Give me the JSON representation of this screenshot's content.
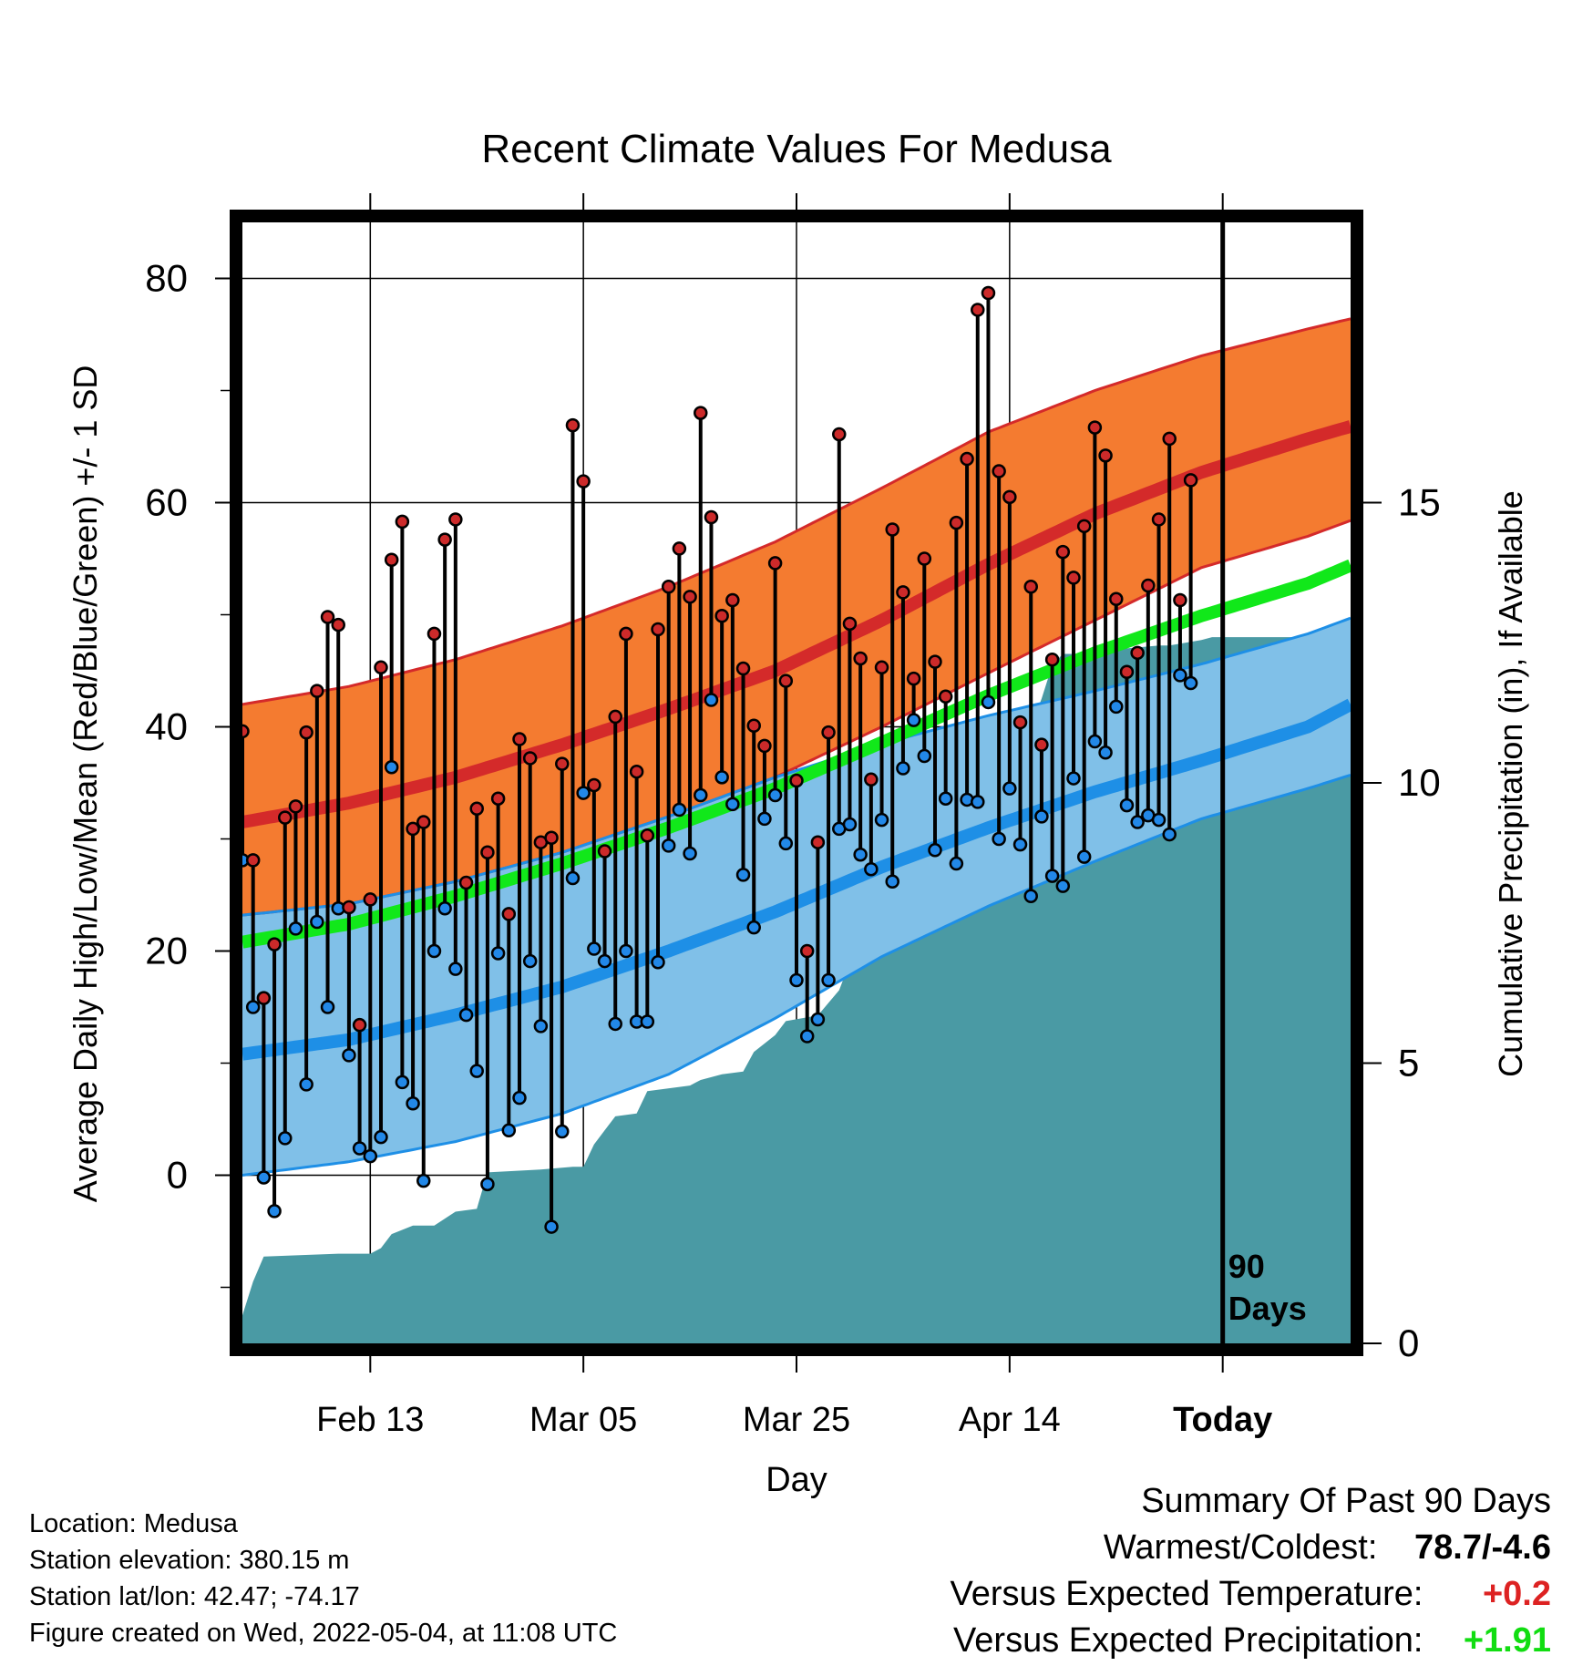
{
  "chart_data": {
    "type": "line",
    "title": "Recent Climate Values For Medusa",
    "xlabel": "Day",
    "ylabel": "Average Daily High/Low/Mean (Red/Blue/Green) +/- 1 SD",
    "y2label": "Cumulative Precipitation (in), If Available",
    "xlim": [
      1,
      105
    ],
    "ylim": [
      -15,
      85
    ],
    "y2lim": [
      0,
      20
    ],
    "yticks": [
      0,
      20,
      40,
      60,
      80
    ],
    "y2ticks": [
      0,
      5,
      10,
      15
    ],
    "xticks": [
      {
        "day": 13,
        "label": "Feb 13"
      },
      {
        "day": 33,
        "label": "Mar 05"
      },
      {
        "day": 53,
        "label": "Mar 25"
      },
      {
        "day": 73,
        "label": "Apr 14"
      },
      {
        "day": 93,
        "label": "Today"
      }
    ],
    "today_day": 93,
    "today_label_1": "90",
    "today_label_2": "Days",
    "grid": true,
    "colors": {
      "high_band": "#f47b30",
      "high_mean": "#d42a2a",
      "high_edge": "#d42a2a",
      "low_band": "#80c0e8",
      "low_mean": "#1e8fe6",
      "low_edge": "#1e8fe6",
      "mean": "#11e81a",
      "precip": "#4a9aa4",
      "high_dot": "#cc2a2a",
      "low_dot": "#2288e8"
    },
    "normals_days": [
      1,
      11,
      21,
      31,
      41,
      51,
      61,
      71,
      81,
      91,
      101,
      105
    ],
    "normal_high": [
      31.5,
      33.2,
      35.5,
      38.4,
      41.6,
      45.0,
      49.5,
      54.5,
      59.0,
      62.7,
      65.7,
      66.8
    ],
    "normal_high_upper": [
      42.0,
      43.6,
      46.0,
      49.0,
      52.5,
      56.5,
      61.3,
      66.3,
      70.0,
      73.1,
      75.5,
      76.4
    ],
    "normal_high_lower": [
      23.2,
      24.2,
      26.2,
      28.8,
      32.0,
      35.5,
      40.0,
      44.8,
      49.5,
      54.2,
      57.0,
      58.4
    ],
    "normal_low": [
      10.8,
      12.1,
      14.3,
      16.8,
      20.0,
      23.5,
      27.5,
      31.0,
      34.2,
      37.0,
      40.0,
      42.0
    ],
    "normal_low_upper": [
      23.2,
      24.2,
      26.2,
      28.8,
      32.0,
      35.5,
      38.5,
      41.0,
      43.2,
      45.6,
      48.3,
      49.7
    ],
    "normal_low_lower": [
      0.0,
      1.2,
      3.0,
      5.5,
      9.0,
      14.0,
      19.5,
      24.0,
      28.0,
      31.8,
      34.5,
      35.7
    ],
    "normal_mean": [
      20.8,
      22.4,
      24.9,
      27.8,
      31.0,
      34.5,
      38.6,
      42.8,
      46.6,
      49.9,
      52.8,
      54.4
    ],
    "daily_high": [
      39.6,
      28.1,
      15.8,
      20.6,
      31.9,
      32.9,
      39.5,
      43.2,
      49.8,
      49.1,
      23.9,
      13.4,
      24.6,
      45.3,
      54.9,
      58.3,
      30.9,
      31.5,
      48.3,
      56.7,
      58.5,
      26.1,
      32.7,
      28.8,
      33.6,
      23.3,
      38.9,
      37.2,
      29.7,
      30.1,
      36.7,
      66.9,
      61.9,
      34.8,
      28.9,
      40.9,
      48.3,
      36.0,
      30.3,
      48.7,
      52.5,
      55.9,
      51.6,
      68.0,
      58.7,
      49.9,
      51.3,
      45.2,
      40.1,
      38.3,
      54.6,
      44.1,
      35.2,
      20.0,
      29.7,
      39.5,
      66.1,
      49.2,
      46.1,
      35.3,
      45.3,
      57.6,
      52.0,
      44.3,
      55.0,
      45.8,
      42.7,
      58.2,
      63.9,
      77.2,
      78.7,
      62.8,
      60.5,
      40.4,
      52.5,
      38.4,
      46.0,
      55.6,
      53.3,
      57.9,
      66.7,
      64.2,
      51.4,
      44.9,
      46.6,
      52.6,
      58.5,
      65.7,
      51.3,
      62.0
    ],
    "daily_low": [
      28.1,
      15.0,
      -0.2,
      -3.2,
      3.3,
      22.0,
      8.1,
      22.6,
      15.0,
      23.8,
      10.7,
      2.4,
      1.7,
      3.4,
      36.4,
      8.3,
      6.4,
      -0.5,
      20.0,
      23.8,
      18.4,
      14.3,
      9.3,
      -0.8,
      19.8,
      4.0,
      6.9,
      19.1,
      13.3,
      -4.6,
      3.9,
      26.5,
      34.1,
      20.2,
      19.1,
      13.5,
      20.0,
      13.7,
      13.7,
      19.0,
      29.4,
      32.6,
      28.7,
      33.9,
      42.4,
      35.5,
      33.1,
      26.8,
      22.1,
      31.8,
      33.9,
      29.6,
      17.4,
      12.4,
      13.9,
      17.4,
      30.9,
      31.3,
      28.6,
      27.3,
      31.7,
      26.2,
      36.3,
      40.6,
      37.4,
      29.0,
      33.6,
      27.8,
      33.5,
      33.3,
      42.2,
      30.0,
      34.5,
      29.5,
      24.9,
      32.0,
      26.7,
      25.8,
      35.4,
      28.4,
      38.7,
      37.7,
      41.8,
      33.0,
      31.5,
      32.1,
      31.7,
      30.4,
      44.6,
      43.9
    ],
    "precip_days": [
      1,
      2,
      3,
      10,
      13,
      14,
      15,
      17,
      19,
      21,
      23,
      24,
      29,
      32,
      33,
      34,
      35,
      36,
      38,
      39,
      43,
      44,
      46,
      48,
      49,
      50,
      51,
      52,
      55,
      57,
      58,
      59,
      60,
      61,
      63,
      64,
      65,
      66,
      69,
      71,
      72,
      73,
      74,
      75,
      76,
      77,
      78,
      79,
      80,
      83,
      84,
      87,
      88,
      91,
      92,
      93,
      105
    ],
    "precip_values": [
      0.5,
      1.1,
      1.55,
      1.6,
      1.6,
      1.7,
      1.95,
      2.1,
      2.1,
      2.35,
      2.4,
      3.05,
      3.1,
      3.15,
      3.15,
      3.55,
      3.8,
      4.05,
      4.1,
      4.5,
      4.6,
      4.7,
      4.8,
      4.85,
      5.2,
      5.35,
      5.5,
      5.75,
      5.85,
      6.3,
      6.8,
      6.85,
      7.3,
      7.4,
      7.6,
      10.0,
      10.2,
      10.3,
      10.3,
      10.5,
      10.6,
      10.7,
      10.75,
      11.0,
      11.5,
      12.1,
      12.3,
      12.3,
      12.3,
      12.4,
      12.4,
      12.45,
      12.45,
      12.55,
      12.6,
      12.6,
      12.6
    ]
  },
  "footer": {
    "location": "Location: Medusa",
    "elevation": "Station elevation: 380.15 m",
    "latlon": "Station lat/lon: 42.47; -74.17",
    "created": "Figure created on Wed, 2022-05-04, at 11:08 UTC"
  },
  "summary": {
    "heading": "Summary Of Past 90 Days",
    "warm_cold_label": "Warmest/Coldest:",
    "warm_cold_value": "78.7/-4.6",
    "temp_label": "Versus Expected Temperature:",
    "temp_value": "+0.2",
    "temp_color": "#dd2222",
    "precip_label": "Versus Expected Precipitation:",
    "precip_value": "+1.91",
    "precip_color": "#11dd11"
  }
}
